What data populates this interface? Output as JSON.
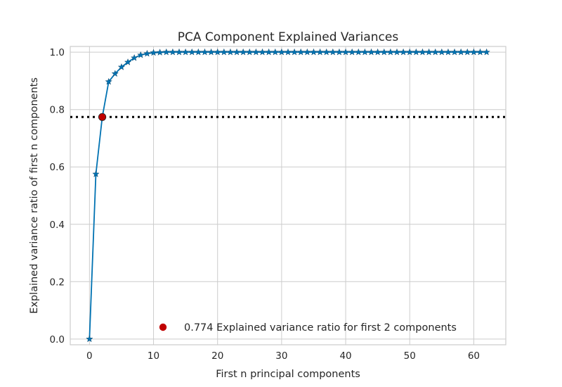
{
  "chart_data": {
    "type": "line",
    "title": "PCA Component Explained Variances",
    "xlabel": "First n principal components",
    "ylabel": "Explained variance ratio of first n components",
    "xlim": [
      -3,
      65
    ],
    "ylim": [
      -0.02,
      1.02
    ],
    "xticks": [
      0,
      10,
      20,
      30,
      40,
      50,
      60
    ],
    "yticks": [
      0.0,
      0.2,
      0.4,
      0.6,
      0.8,
      1.0
    ],
    "ytick_labels": [
      "0.0",
      "0.2",
      "0.4",
      "0.6",
      "0.8",
      "1.0"
    ],
    "grid": true,
    "series": [
      {
        "marker": "star",
        "color": "#0072B2",
        "x": [
          0,
          1,
          2,
          3,
          4,
          5,
          6,
          7,
          8,
          9,
          10,
          11,
          12,
          13,
          14,
          15,
          16,
          17,
          18,
          19,
          20,
          21,
          22,
          23,
          24,
          25,
          26,
          27,
          28,
          29,
          30,
          31,
          32,
          33,
          34,
          35,
          36,
          37,
          38,
          39,
          40,
          41,
          42,
          43,
          44,
          45,
          46,
          47,
          48,
          49,
          50,
          51,
          52,
          53,
          54,
          55,
          56,
          57,
          58,
          59,
          60,
          61,
          62
        ],
        "y": [
          0.0,
          0.575,
          0.774,
          0.897,
          0.925,
          0.948,
          0.965,
          0.98,
          0.99,
          0.995,
          0.998,
          0.999,
          1.0,
          1.0,
          1.0,
          1.0,
          1.0,
          1.0,
          1.0,
          1.0,
          1.0,
          1.0,
          1.0,
          1.0,
          1.0,
          1.0,
          1.0,
          1.0,
          1.0,
          1.0,
          1.0,
          1.0,
          1.0,
          1.0,
          1.0,
          1.0,
          1.0,
          1.0,
          1.0,
          1.0,
          1.0,
          1.0,
          1.0,
          1.0,
          1.0,
          1.0,
          1.0,
          1.0,
          1.0,
          1.0,
          1.0,
          1.0,
          1.0,
          1.0,
          1.0,
          1.0,
          1.0,
          1.0,
          1.0,
          1.0,
          1.0,
          1.0,
          1.0
        ]
      }
    ],
    "threshold": {
      "y": 0.774,
      "style": "dotted",
      "color": "#000000"
    },
    "highlight": {
      "x": 2,
      "y": 0.774,
      "color": "#C00000"
    },
    "legend": {
      "label": "0.774 Explained variance ratio for first 2 components",
      "placement": "lower-right"
    }
  }
}
